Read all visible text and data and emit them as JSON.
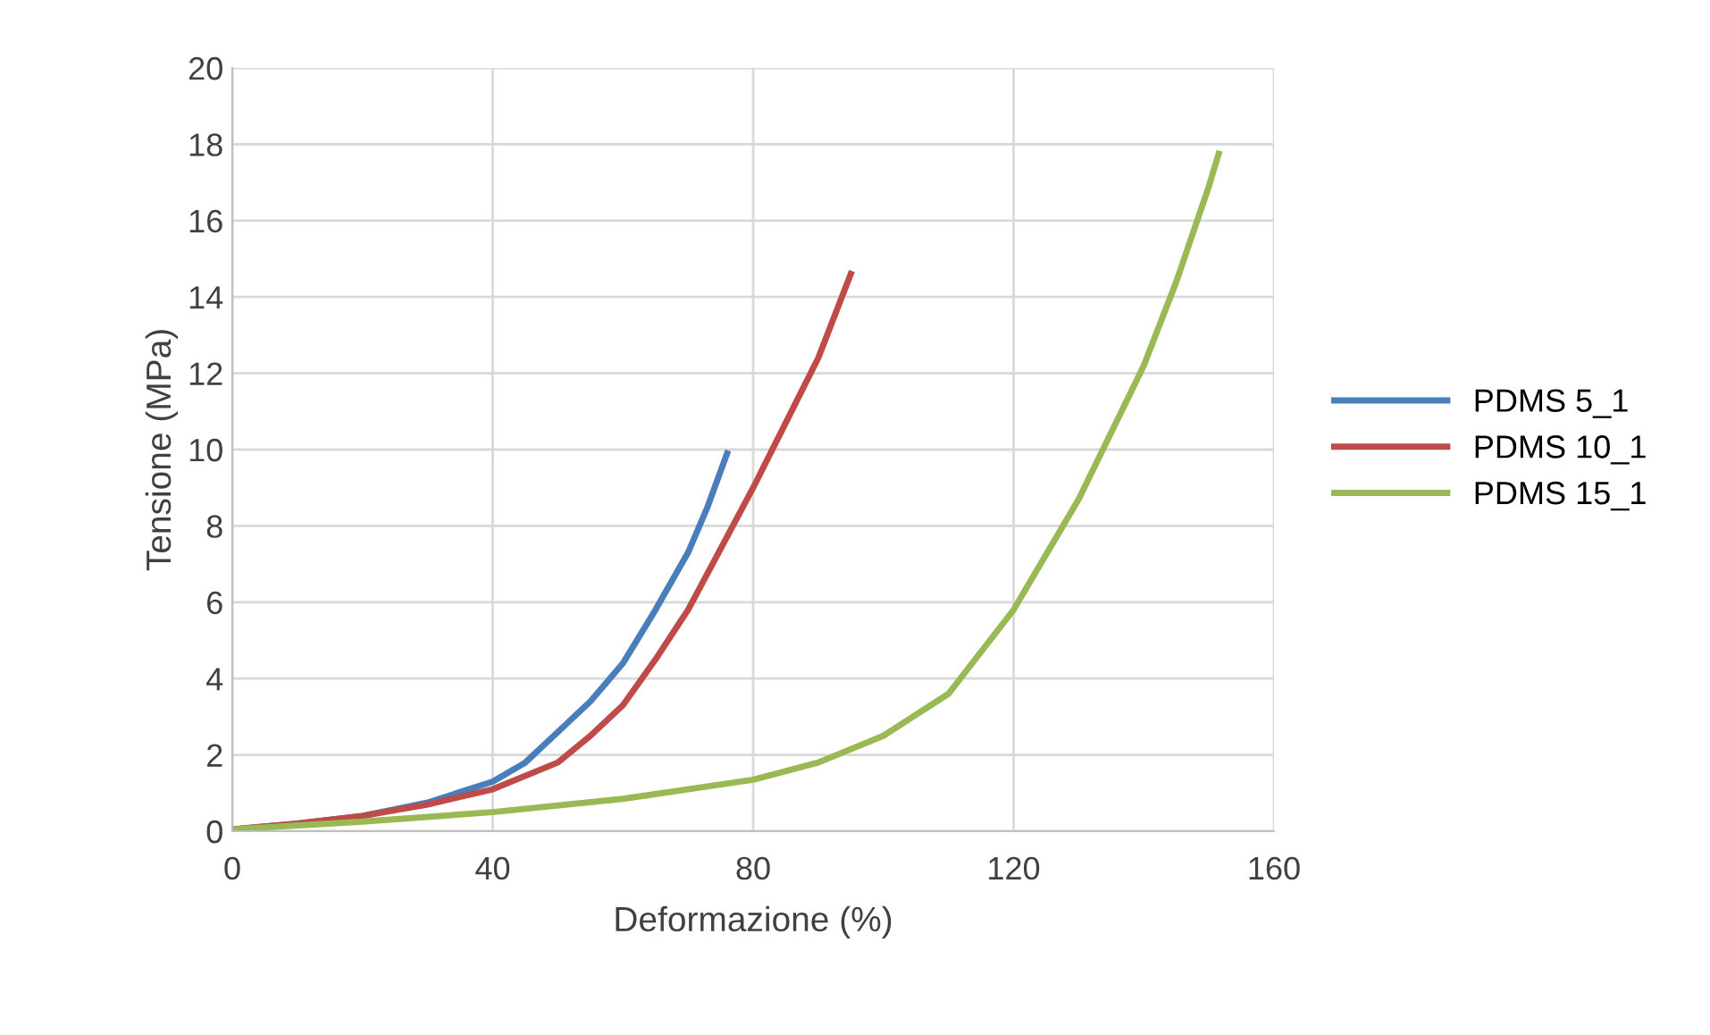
{
  "chart_data": {
    "type": "line",
    "xlabel": "Deformazione (%)",
    "ylabel": "Tensione (MPa)",
    "xlim": [
      0,
      160
    ],
    "xticks": [
      0,
      40,
      80,
      120,
      160
    ],
    "ylim": [
      0,
      20
    ],
    "yticks": [
      0,
      2,
      4,
      6,
      8,
      10,
      12,
      14,
      16,
      18,
      20
    ],
    "grid": true,
    "legend": "right",
    "marker": "none",
    "line_style": "solid",
    "series": [
      {
        "name": "PDMS 5_1",
        "color": "#4a7ebb",
        "x": [
          0,
          10,
          20,
          30,
          40,
          45,
          50,
          55,
          60,
          65,
          70,
          73,
          76
        ],
        "values": [
          0.05,
          0.2,
          0.4,
          0.75,
          1.3,
          1.8,
          2.6,
          3.4,
          4.4,
          5.8,
          7.3,
          8.5,
          9.9
        ]
      },
      {
        "name": "PDMS 10_1",
        "color": "#be4b48",
        "x": [
          0,
          10,
          20,
          30,
          40,
          50,
          55,
          60,
          65,
          70,
          75,
          80,
          85,
          90,
          95
        ],
        "values": [
          0.05,
          0.2,
          0.4,
          0.7,
          1.1,
          1.8,
          2.5,
          3.3,
          4.5,
          5.8,
          7.4,
          9.0,
          10.7,
          12.4,
          14.6
        ]
      },
      {
        "name": "PDMS 15_1",
        "color": "#98b954",
        "x": [
          0,
          20,
          40,
          60,
          80,
          90,
          100,
          110,
          120,
          130,
          140,
          145,
          150,
          151.5
        ],
        "values": [
          0.05,
          0.25,
          0.5,
          0.85,
          1.35,
          1.8,
          2.5,
          3.6,
          5.8,
          8.7,
          12.2,
          14.4,
          16.9,
          17.75
        ]
      }
    ]
  }
}
